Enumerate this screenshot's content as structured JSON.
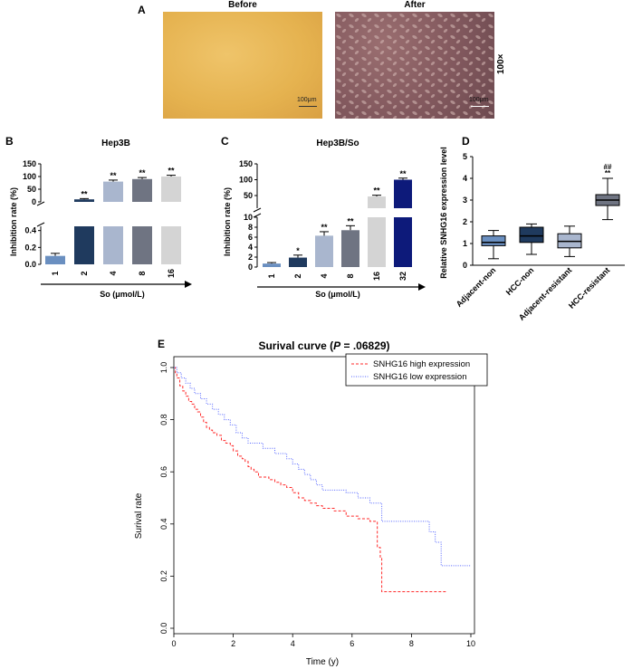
{
  "panel_a": {
    "label": "A",
    "before_title": "Before",
    "after_title": "After",
    "scale_before": "100μm",
    "scale_after": "100μm",
    "magnification": "100×",
    "colors": {
      "before_bg": "#e7b752",
      "after_bg": "#8b5e63"
    }
  },
  "chart_data": [
    {
      "id": "B",
      "type": "bar",
      "panel_label": "B",
      "title": "Hep3B",
      "xlabel": "So (μmol/L)",
      "ylabel": "Inhibition rate (%)",
      "categories": [
        "1",
        "2",
        "4",
        "8",
        "16"
      ],
      "values": [
        0.1,
        10,
        80,
        90,
        100
      ],
      "errors": [
        0.03,
        3,
        6,
        6,
        5
      ],
      "significance": [
        "",
        "**",
        "**",
        "**",
        "**"
      ],
      "bar_colors": [
        "#6a8fc0",
        "#1f3a5e",
        "#a9b6ce",
        "#6f7482",
        "#d4d4d4"
      ],
      "y_ticks_upper": [
        "0",
        "50",
        "100",
        "150"
      ],
      "y_ticks_lower": [
        "0.0",
        "0.2",
        "0.4"
      ],
      "ylim_lower": [
        0,
        0.45
      ],
      "ylim_upper": [
        0,
        150
      ],
      "y_axis_break": true
    },
    {
      "id": "C",
      "type": "bar",
      "panel_label": "C",
      "title": "Hep3B/So",
      "xlabel": "So (μmol/L)",
      "ylabel": "Inhibition rate (%)",
      "categories": [
        "1",
        "2",
        "4",
        "8",
        "16",
        "32"
      ],
      "values": [
        0.7,
        1.9,
        6.3,
        7.4,
        47,
        100
      ],
      "errors": [
        0.2,
        0.5,
        0.8,
        0.9,
        4,
        5
      ],
      "significance": [
        "",
        "*",
        "**",
        "**",
        "**",
        "**"
      ],
      "bar_colors": [
        "#6a8fc0",
        "#1f3a5e",
        "#a9b6ce",
        "#6f7482",
        "#d4d4d4",
        "#0d1a7a"
      ],
      "y_ticks_upper": [
        "50",
        "100",
        "150"
      ],
      "y_ticks_lower": [
        "0",
        "2",
        "4",
        "6",
        "8",
        "10"
      ],
      "ylim_lower": [
        0,
        10
      ],
      "ylim_upper": [
        10,
        150
      ],
      "y_axis_break": true
    },
    {
      "id": "D",
      "type": "box",
      "panel_label": "D",
      "ylabel": "Relative SNHG16 expression level",
      "categories": [
        "Adjacent-non",
        "HCC-non",
        "Adjacent-resistant",
        "HCC-resistant"
      ],
      "boxes": [
        {
          "min": 0.3,
          "q1": 0.9,
          "median": 1.05,
          "q3": 1.35,
          "max": 1.6
        },
        {
          "min": 0.5,
          "q1": 1.05,
          "median": 1.35,
          "q3": 1.75,
          "max": 1.9
        },
        {
          "min": 0.4,
          "q1": 0.8,
          "median": 1.1,
          "q3": 1.45,
          "max": 1.8
        },
        {
          "min": 2.1,
          "q1": 2.75,
          "median": 3.0,
          "q3": 3.25,
          "max": 4.0
        }
      ],
      "box_colors": [
        "#6a8fc0",
        "#1f3a5e",
        "#a9b6ce",
        "#6f7482"
      ],
      "significance": [
        "",
        "",
        "",
        "**"
      ],
      "significance2": [
        "",
        "",
        "",
        "##"
      ],
      "y_ticks": [
        "0",
        "1",
        "2",
        "3",
        "4",
        "5"
      ],
      "ylim": [
        0,
        5
      ]
    },
    {
      "id": "E",
      "type": "line",
      "panel_label": "E",
      "title": "Surival curve (",
      "title_p": "P",
      "title_rest": " = .06829)",
      "xlabel": "Time (y)",
      "ylabel": "Surival rate",
      "xlim": [
        0,
        10
      ],
      "ylim": [
        0,
        1
      ],
      "x_ticks": [
        "0",
        "2",
        "4",
        "6",
        "8",
        "10"
      ],
      "y_ticks": [
        "0.0",
        "0.2",
        "0.4",
        "0.6",
        "0.8",
        "1.0"
      ],
      "legend_position": "top-right",
      "series": [
        {
          "name": "SNHG16 high expression",
          "color": "#ff2a2a",
          "dash": "dashed",
          "x": [
            0,
            0.05,
            0.1,
            0.2,
            0.3,
            0.4,
            0.5,
            0.6,
            0.7,
            0.8,
            0.9,
            1.0,
            1.1,
            1.2,
            1.3,
            1.45,
            1.6,
            1.75,
            1.9,
            2.0,
            2.15,
            2.3,
            2.4,
            2.5,
            2.6,
            2.7,
            2.85,
            3.0,
            3.2,
            3.4,
            3.6,
            3.8,
            4.0,
            4.2,
            4.4,
            4.6,
            4.8,
            5.0,
            5.4,
            5.8,
            6.2,
            6.6,
            6.85,
            6.95,
            7.0,
            9.2
          ],
          "y": [
            1.0,
            0.98,
            0.96,
            0.93,
            0.91,
            0.89,
            0.87,
            0.86,
            0.84,
            0.83,
            0.81,
            0.79,
            0.77,
            0.76,
            0.75,
            0.74,
            0.72,
            0.71,
            0.7,
            0.68,
            0.66,
            0.65,
            0.64,
            0.62,
            0.61,
            0.6,
            0.58,
            0.58,
            0.57,
            0.56,
            0.55,
            0.54,
            0.52,
            0.5,
            0.49,
            0.48,
            0.47,
            0.46,
            0.45,
            0.43,
            0.42,
            0.41,
            0.31,
            0.27,
            0.14,
            0.14
          ]
        },
        {
          "name": "SNHG16 low expression",
          "color": "#5566ff",
          "dash": "dotted",
          "x": [
            0,
            0.1,
            0.25,
            0.4,
            0.55,
            0.7,
            0.9,
            1.1,
            1.3,
            1.5,
            1.7,
            1.9,
            2.1,
            2.3,
            2.5,
            2.7,
            3.0,
            3.4,
            3.8,
            4.0,
            4.2,
            4.4,
            4.6,
            4.8,
            5.0,
            5.4,
            5.8,
            6.2,
            6.6,
            7.0,
            8.0,
            8.6,
            8.8,
            9.0,
            10.0
          ],
          "y": [
            1.0,
            0.98,
            0.96,
            0.94,
            0.92,
            0.9,
            0.88,
            0.86,
            0.84,
            0.82,
            0.8,
            0.78,
            0.75,
            0.73,
            0.71,
            0.71,
            0.69,
            0.67,
            0.65,
            0.63,
            0.61,
            0.59,
            0.57,
            0.55,
            0.53,
            0.53,
            0.52,
            0.5,
            0.48,
            0.41,
            0.41,
            0.37,
            0.33,
            0.24,
            0.24
          ]
        }
      ]
    }
  ]
}
